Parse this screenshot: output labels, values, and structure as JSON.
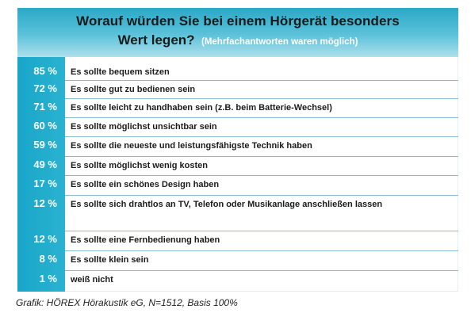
{
  "chart_data": {
    "type": "table",
    "title": "Worauf würden Sie bei einem Hörgerät besonders",
    "title_line2": "Wert legen?",
    "subtitle": "(Mehrfachantworten waren möglich)",
    "rows": [
      {
        "value": 85,
        "label_pct": "85 %",
        "text": "Es sollte bequem sitzen"
      },
      {
        "value": 72,
        "label_pct": "72 %",
        "text": "Es sollte gut zu bedienen sein"
      },
      {
        "value": 71,
        "label_pct": "71 %",
        "text": "Es sollte leicht zu handhaben sein (z.B. beim Batterie-Wechsel)"
      },
      {
        "value": 60,
        "label_pct": "60 %",
        "text": "Es sollte möglichst unsichtbar sein"
      },
      {
        "value": 59,
        "label_pct": "59 %",
        "text": "Es sollte die neueste und leistungsfähigste Technik haben"
      },
      {
        "value": 49,
        "label_pct": "49 %",
        "text": "Es sollte möglichst wenig kosten"
      },
      {
        "value": 17,
        "label_pct": "17 %",
        "text": "Es sollte ein schönes Design haben"
      },
      {
        "value": 12,
        "label_pct": "12 %",
        "text": "Es sollte sich drahtlos an TV, Telefon oder Musikanlage anschließen lassen"
      },
      {
        "value": 12,
        "label_pct": "12 %",
        "text": "Es sollte eine Fernbedienung haben"
      },
      {
        "value": 8,
        "label_pct": "8 %",
        "text": "Es sollte klein sein"
      },
      {
        "value": 1,
        "label_pct": "1 %",
        "text": "weiß nicht"
      }
    ],
    "source": "Grafik: HÖREX Hörakustik eG, N=1512, Basis 100%",
    "colors": {
      "header": "#3fb6d3",
      "band": "#1fa9ca",
      "separator": "#88bfd0"
    }
  }
}
